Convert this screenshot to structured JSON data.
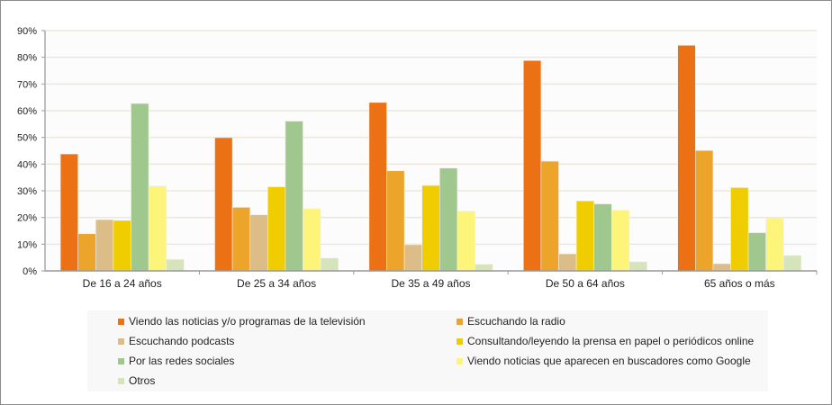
{
  "chart_data": {
    "type": "bar",
    "categories": [
      "De 16 a 24 años",
      "De 25 a 34 años",
      "De 35 a 49 años",
      "De 50 a 64 años",
      "65 años o más"
    ],
    "ylim": [
      0,
      90
    ],
    "yticks": [
      "0%",
      "10%",
      "20%",
      "30%",
      "40%",
      "50%",
      "60%",
      "70%",
      "80%",
      "90%"
    ],
    "grid": true,
    "legend_position": "bottom",
    "series": [
      {
        "name": "Viendo las noticias y/o programas de la televisión",
        "color": "#ec7014",
        "values": [
          43.8,
          49.9,
          63.1,
          78.8,
          84.5
        ]
      },
      {
        "name": "Escuchando la radio",
        "color": "#eca42a",
        "values": [
          13.9,
          23.8,
          37.5,
          41.1,
          45.1
        ]
      },
      {
        "name": "Escuchando podcasts",
        "color": "#dcbd88",
        "values": [
          19.2,
          21.0,
          9.8,
          6.4,
          2.7
        ]
      },
      {
        "name": "Consultando/leyendo la prensa en papel o periódicos online",
        "color": "#efcd00",
        "values": [
          18.9,
          31.5,
          32.0,
          26.2,
          31.2
        ]
      },
      {
        "name": "Por las redes sociales",
        "color": "#9fc78e",
        "values": [
          62.7,
          56.1,
          38.5,
          25.1,
          14.3
        ]
      },
      {
        "name": "Viendo noticias que aparecen en buscadores como Google",
        "color": "#fdf57a",
        "values": [
          31.8,
          23.3,
          22.4,
          22.7,
          19.8
        ]
      },
      {
        "name": "Otros",
        "color": "#d6e4bb",
        "values": [
          4.3,
          4.8,
          2.5,
          3.4,
          5.8
        ]
      }
    ]
  }
}
